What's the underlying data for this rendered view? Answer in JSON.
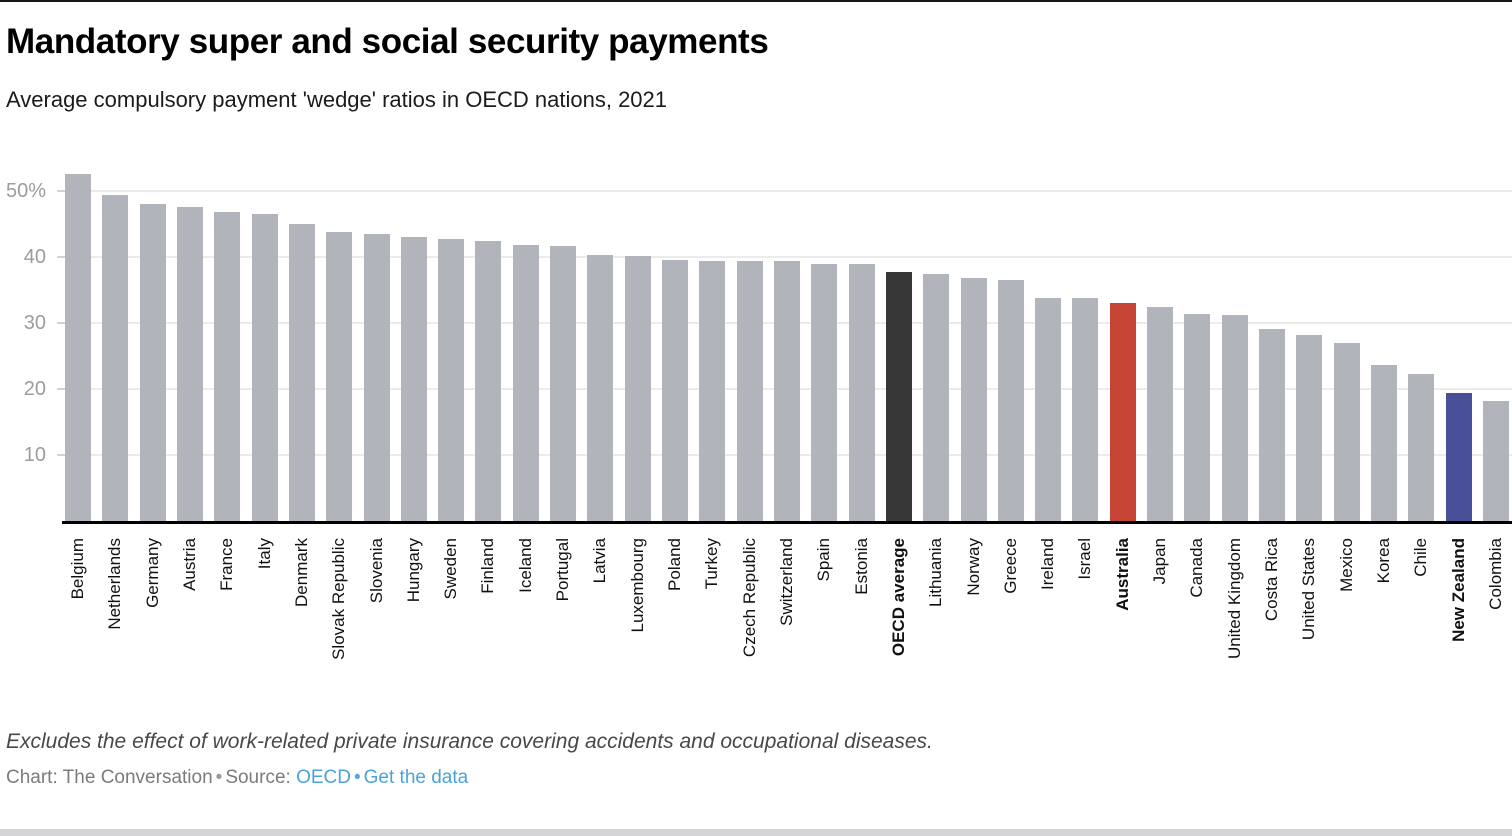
{
  "header": {
    "title": "Mandatory super and social security payments",
    "subtitle": "Average compulsory payment 'wedge' ratios in OECD nations, 2021"
  },
  "chart_data": {
    "type": "bar",
    "title": "Mandatory super and social security payments",
    "subtitle": "Average compulsory payment 'wedge' ratios in OECD nations, 2021",
    "xlabel": "",
    "ylabel": "",
    "ylim": [
      0,
      54
    ],
    "grid": true,
    "y_ticks": [
      {
        "value": 50,
        "label": "50%"
      },
      {
        "value": 40,
        "label": "40"
      },
      {
        "value": 30,
        "label": "30"
      },
      {
        "value": 20,
        "label": "20"
      },
      {
        "value": 10,
        "label": "10"
      }
    ],
    "categories": [
      "Belgium",
      "Netherlands",
      "Germany",
      "Austria",
      "France",
      "Italy",
      "Denmark",
      "Slovak Republic",
      "Slovenia",
      "Hungary",
      "Sweden",
      "Finland",
      "Iceland",
      "Portugal",
      "Latvia",
      "Luxembourg",
      "Poland",
      "Turkey",
      "Czech Republic",
      "Switzerland",
      "Spain",
      "Estonia",
      "OECD average",
      "Lithuania",
      "Norway",
      "Greece",
      "Ireland",
      "Israel",
      "Australia",
      "Japan",
      "Canada",
      "United Kingdom",
      "Costa Rica",
      "United States",
      "Mexico",
      "Korea",
      "Chile",
      "New Zealand",
      "Colombia"
    ],
    "values": [
      52.6,
      49.4,
      48.1,
      47.7,
      46.9,
      46.5,
      45.0,
      43.8,
      43.5,
      43.1,
      42.8,
      42.4,
      41.9,
      41.7,
      40.4,
      40.2,
      39.6,
      39.5,
      39.5,
      39.4,
      39.0,
      39.0,
      37.7,
      37.4,
      36.8,
      36.6,
      33.9,
      33.8,
      33.0,
      32.5,
      31.4,
      31.2,
      29.2,
      28.2,
      27.0,
      23.6,
      22.3,
      19.4,
      18.2
    ],
    "bar_color_default": "#b1b4bb",
    "highlight_colors": {
      "OECD average": "#373737",
      "Australia": "#c54436",
      "New Zealand": "#4a5097"
    },
    "bold_labels": [
      "OECD average",
      "Australia",
      "New Zealand"
    ],
    "legend_position": "none"
  },
  "footer": {
    "note": "Excludes the effect of work-related private insurance covering accidents and occupational diseases.",
    "credit": {
      "chart_label": "Chart: The Conversation",
      "sep1": "•",
      "source_label": "Source:",
      "source_link": "OECD",
      "sep2": "•",
      "data_link": "Get the data"
    },
    "link_color": "#4ba3d9"
  }
}
